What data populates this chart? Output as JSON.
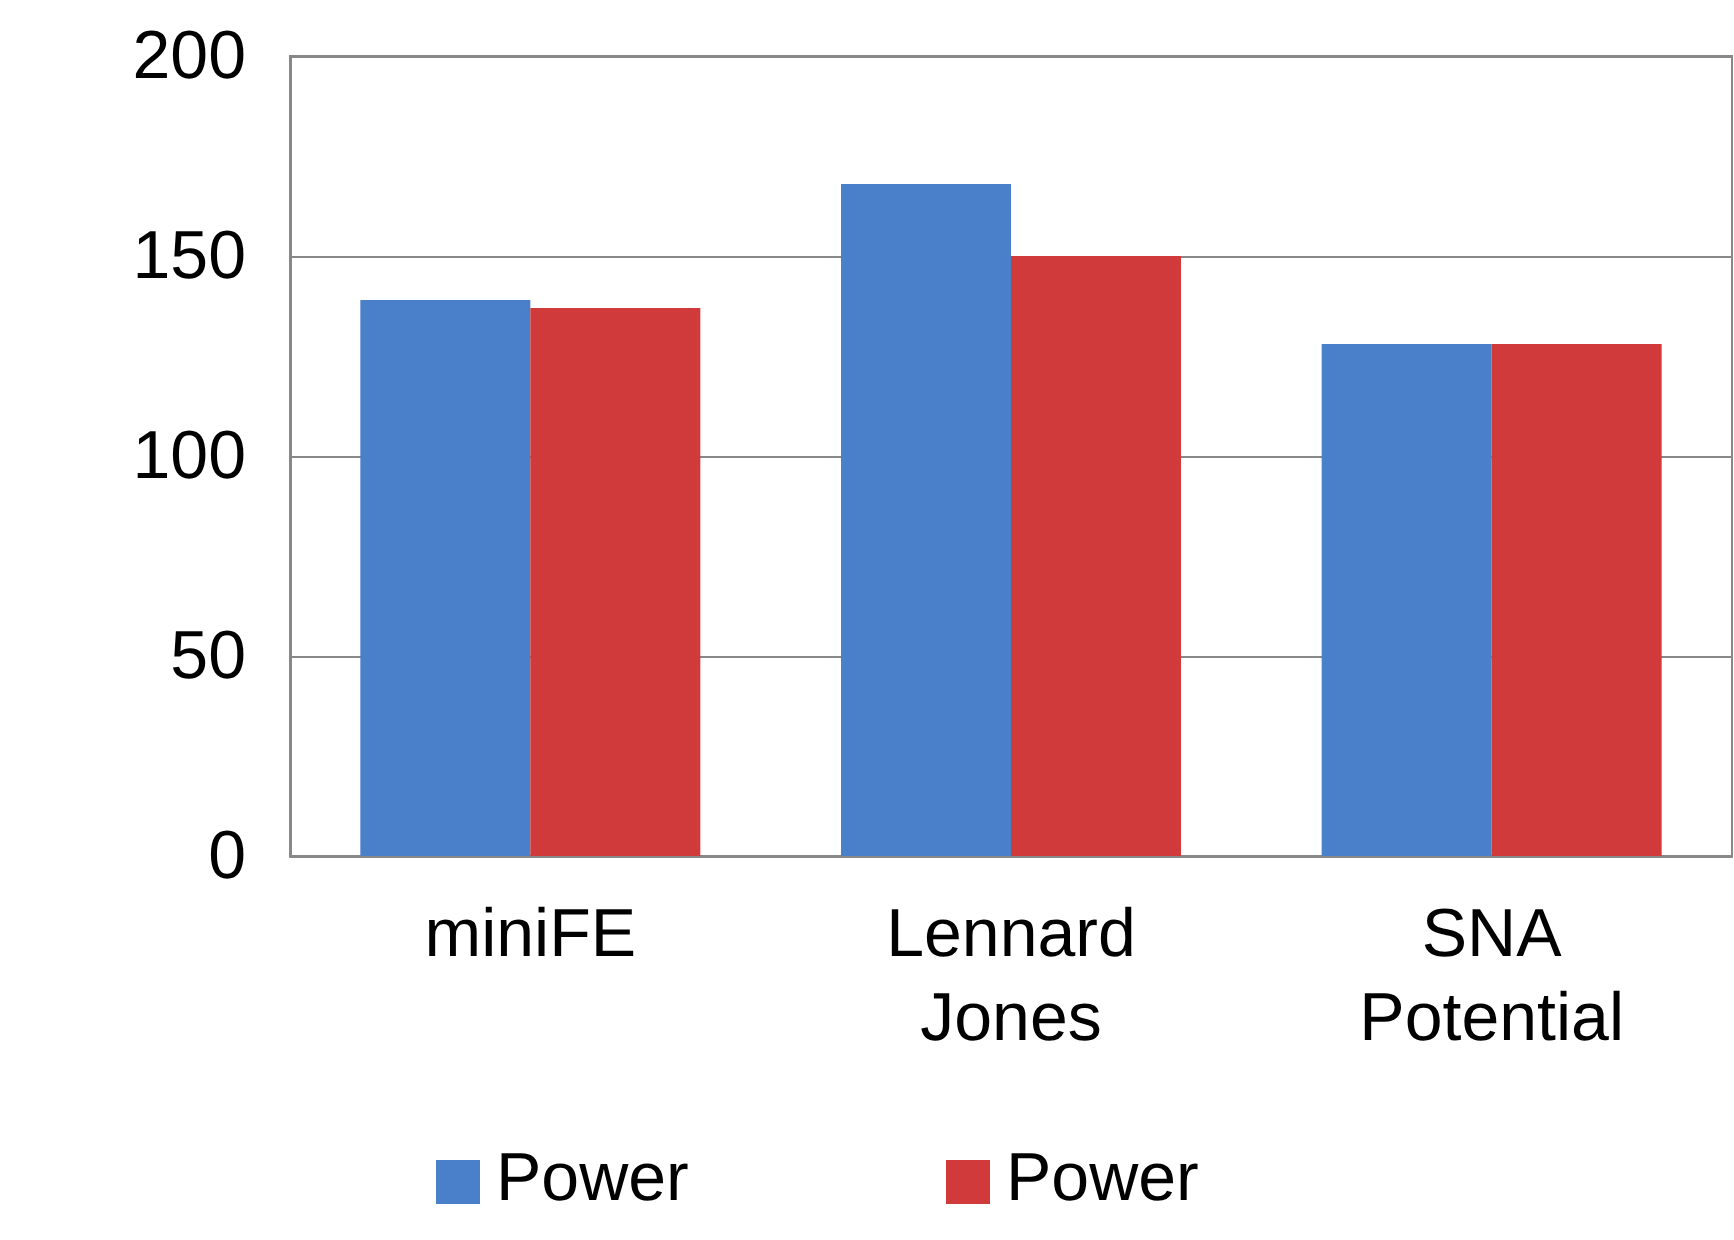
{
  "chart_data": {
    "type": "bar",
    "categories": [
      "miniFE",
      "Lennard\nJones",
      "SNA\nPotential"
    ],
    "series": [
      {
        "name": "Power",
        "color": "#4a7fc9",
        "values": [
          139,
          168,
          128
        ]
      },
      {
        "name": "Power",
        "color": "#d03a3a",
        "values": [
          137,
          150,
          128
        ]
      }
    ],
    "ylim": [
      0,
      200
    ],
    "yticks": [
      0,
      50,
      100,
      150,
      200
    ],
    "grid": "y",
    "legend": "bottom"
  }
}
